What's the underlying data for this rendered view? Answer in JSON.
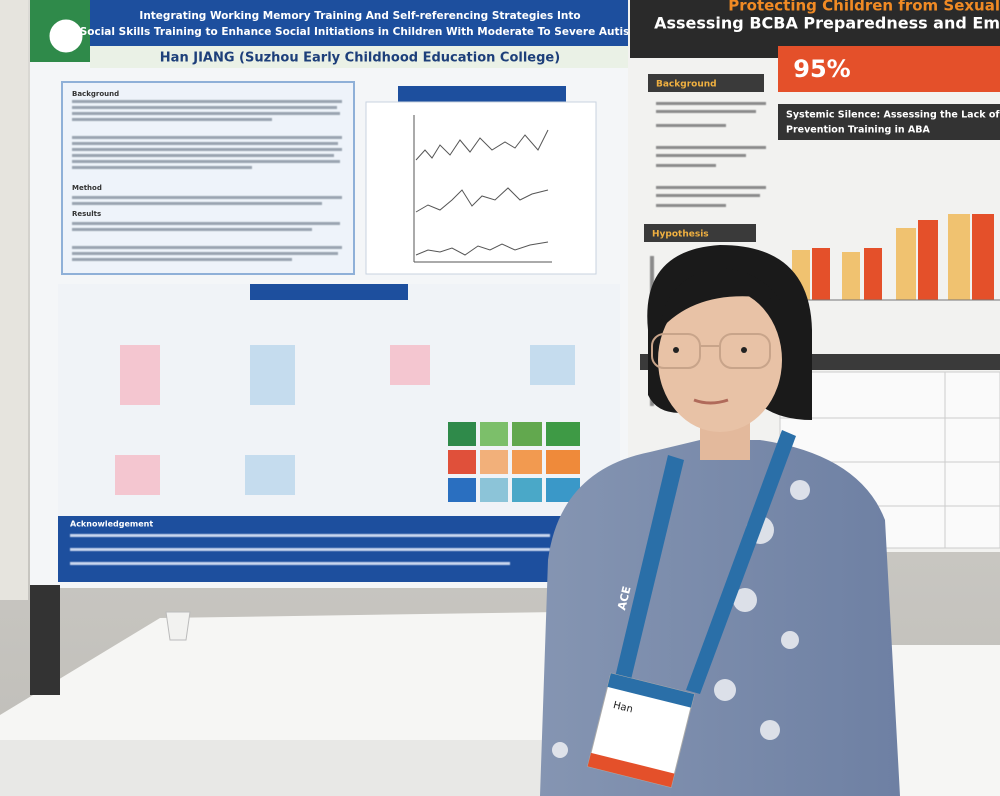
{
  "left_poster": {
    "title_lines": [
      "Integrating Working Memory Training And Self-referencing Strategies Into",
      "Social Skills Training to Enhance Social Initiations in Children With Moderate To Severe Autism"
    ],
    "author": "Han JIANG (Suzhou Early Childhood Education College)",
    "sections": [
      "Background",
      "Method",
      "Results"
    ],
    "acknowledgement": "Acknowledgement"
  },
  "right_poster": {
    "title_lines": [
      "Protecting Children from Sexual",
      "Assessing BCBA Preparedness and Em"
    ],
    "stat": "95%",
    "sections": [
      "Background",
      "Hypothesis"
    ],
    "subtitle_lines": [
      "Systemic Silence: Assessing the Lack of Sexual Abuse",
      "Prevention Training in ABA"
    ]
  },
  "badge": {
    "lanyard": "ACE",
    "name": "Han"
  }
}
